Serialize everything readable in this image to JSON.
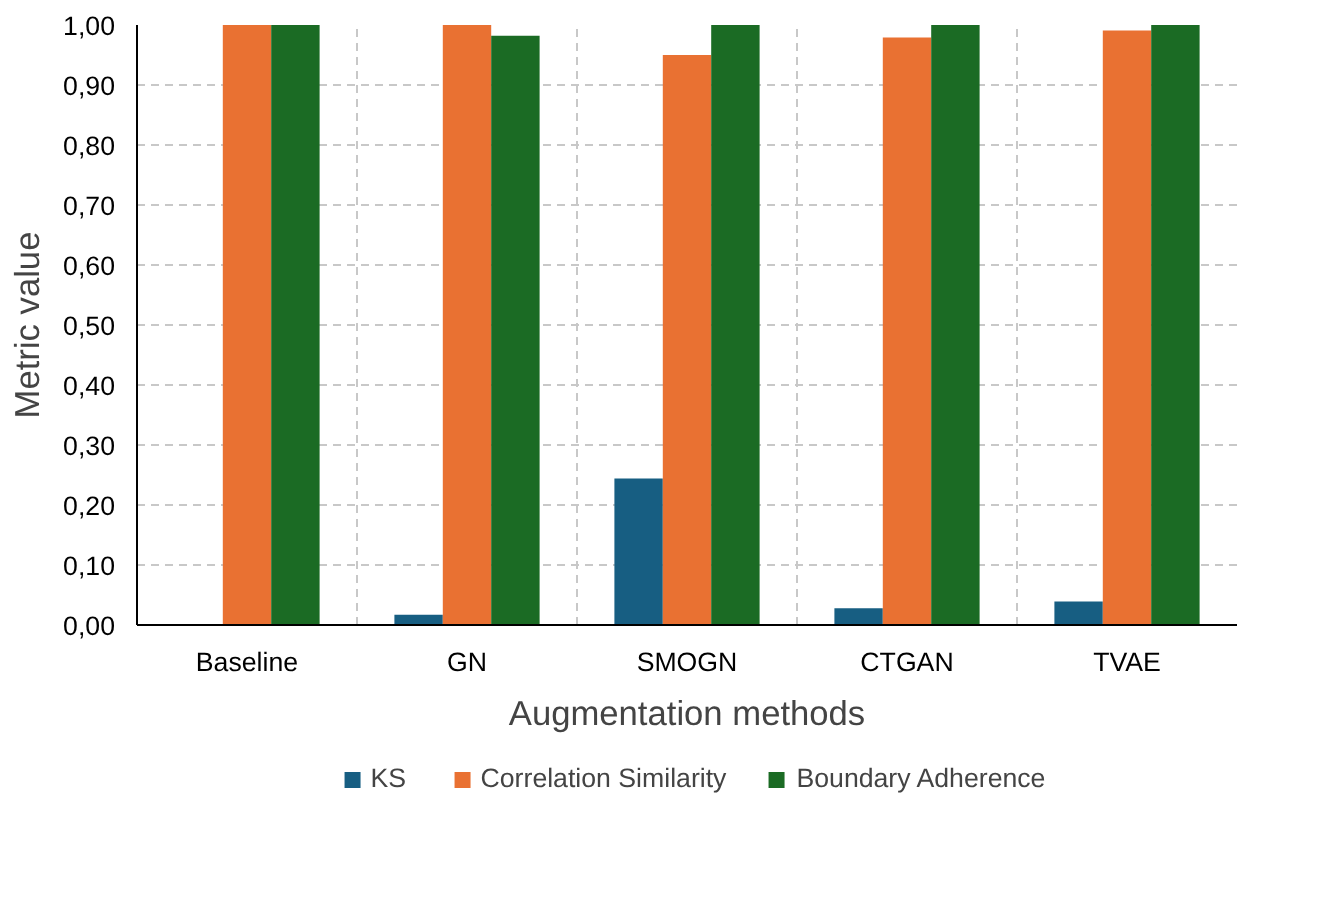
{
  "chart_data": {
    "type": "bar",
    "xlabel": "Augmentation methods",
    "ylabel": "Metric value",
    "categories": [
      "Baseline",
      "GN",
      "SMOGN",
      "CTGAN",
      "TVAE"
    ],
    "series": [
      {
        "name": "KS",
        "color": "#175e82",
        "values": [
          0,
          0.017,
          0.244,
          0.028,
          0.039
        ]
      },
      {
        "name": "Correlation Similarity",
        "color": "#e97132",
        "values": [
          1.0,
          1.0,
          0.95,
          0.979,
          0.991
        ]
      },
      {
        "name": "Boundary Adherence",
        "color": "#1b6b24",
        "values": [
          1.0,
          0.982,
          1.0,
          1.0,
          1.0
        ]
      }
    ],
    "ylim": [
      0,
      1
    ],
    "yticks": [
      {
        "value": 0,
        "label": "0,00"
      },
      {
        "value": 0.1,
        "label": "0,10"
      },
      {
        "value": 0.2,
        "label": "0,20"
      },
      {
        "value": 0.3,
        "label": "0,30"
      },
      {
        "value": 0.4,
        "label": "0,40"
      },
      {
        "value": 0.5,
        "label": "0,50"
      },
      {
        "value": 0.6,
        "label": "0,60"
      },
      {
        "value": 0.7,
        "label": "0,70"
      },
      {
        "value": 0.8,
        "label": "0,80"
      },
      {
        "value": 0.9,
        "label": "0,90"
      },
      {
        "value": 1,
        "label": "1,00"
      }
    ],
    "grid": true,
    "legend": "bottom"
  }
}
